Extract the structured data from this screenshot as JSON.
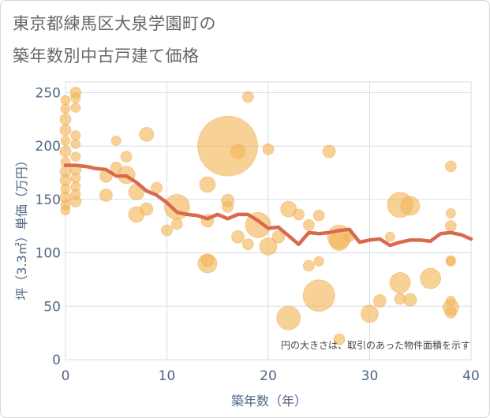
{
  "title_line1": "東京都練馬区大泉学園町の",
  "title_line2": "築年数別中古戸建て価格",
  "chart_data": {
    "type": "scatter",
    "xlabel": "築年数（年）",
    "ylabel": "坪（3.3㎡）単価（万円）",
    "xlim": [
      0,
      40
    ],
    "ylim": [
      0,
      260
    ],
    "xticks": [
      0,
      10,
      20,
      30,
      40
    ],
    "yticks": [
      0,
      50,
      100,
      150,
      200,
      250
    ],
    "note": "円の大きさは、取引のあった物件面積を示す",
    "colors": {
      "bubble": "#f3b557",
      "line": "#d9694f",
      "grid": "#d6dde6",
      "tick_text": "#506784"
    },
    "grid": true,
    "bubbles": [
      {
        "x": 0,
        "y": 243,
        "s": 6
      },
      {
        "x": 0,
        "y": 235,
        "s": 6
      },
      {
        "x": 0,
        "y": 225,
        "s": 7
      },
      {
        "x": 0,
        "y": 215,
        "s": 7
      },
      {
        "x": 0,
        "y": 205,
        "s": 6
      },
      {
        "x": 0,
        "y": 195,
        "s": 7
      },
      {
        "x": 0,
        "y": 185,
        "s": 6
      },
      {
        "x": 0,
        "y": 176,
        "s": 7
      },
      {
        "x": 0,
        "y": 168,
        "s": 7
      },
      {
        "x": 0,
        "y": 160,
        "s": 6
      },
      {
        "x": 0,
        "y": 152,
        "s": 7
      },
      {
        "x": 0,
        "y": 145,
        "s": 6
      },
      {
        "x": 0,
        "y": 140,
        "s": 6
      },
      {
        "x": 1,
        "y": 250,
        "s": 7
      },
      {
        "x": 1,
        "y": 245,
        "s": 6
      },
      {
        "x": 1,
        "y": 236,
        "s": 6
      },
      {
        "x": 1,
        "y": 210,
        "s": 6
      },
      {
        "x": 1,
        "y": 202,
        "s": 6
      },
      {
        "x": 1,
        "y": 190,
        "s": 6
      },
      {
        "x": 1,
        "y": 178,
        "s": 7
      },
      {
        "x": 1,
        "y": 170,
        "s": 6
      },
      {
        "x": 1,
        "y": 162,
        "s": 6
      },
      {
        "x": 1,
        "y": 155,
        "s": 6
      },
      {
        "x": 1,
        "y": 148,
        "s": 7
      },
      {
        "x": 4,
        "y": 172,
        "s": 8
      },
      {
        "x": 4,
        "y": 154,
        "s": 8
      },
      {
        "x": 5,
        "y": 205,
        "s": 6
      },
      {
        "x": 5,
        "y": 180,
        "s": 7
      },
      {
        "x": 6,
        "y": 190,
        "s": 7
      },
      {
        "x": 6,
        "y": 173,
        "s": 11
      },
      {
        "x": 7,
        "y": 157,
        "s": 10
      },
      {
        "x": 7,
        "y": 136,
        "s": 10
      },
      {
        "x": 8,
        "y": 211,
        "s": 9
      },
      {
        "x": 8,
        "y": 141,
        "s": 8
      },
      {
        "x": 9,
        "y": 161,
        "s": 7
      },
      {
        "x": 10,
        "y": 121,
        "s": 7
      },
      {
        "x": 11,
        "y": 143,
        "s": 16
      },
      {
        "x": 11,
        "y": 127,
        "s": 7
      },
      {
        "x": 14,
        "y": 164,
        "s": 10
      },
      {
        "x": 14,
        "y": 130,
        "s": 8
      },
      {
        "x": 14,
        "y": 93,
        "s": 8
      },
      {
        "x": 14,
        "y": 90,
        "s": 12
      },
      {
        "x": 16,
        "y": 200,
        "s": 38
      },
      {
        "x": 16,
        "y": 149,
        "s": 8
      },
      {
        "x": 16,
        "y": 143,
        "s": 7
      },
      {
        "x": 17,
        "y": 195,
        "s": 9
      },
      {
        "x": 17,
        "y": 115,
        "s": 8
      },
      {
        "x": 18,
        "y": 246,
        "s": 7
      },
      {
        "x": 18,
        "y": 108,
        "s": 7
      },
      {
        "x": 19,
        "y": 126,
        "s": 16
      },
      {
        "x": 20,
        "y": 197,
        "s": 7
      },
      {
        "x": 20,
        "y": 106,
        "s": 11
      },
      {
        "x": 21,
        "y": 115,
        "s": 8
      },
      {
        "x": 22,
        "y": 141,
        "s": 10
      },
      {
        "x": 22,
        "y": 39,
        "s": 15
      },
      {
        "x": 23,
        "y": 136,
        "s": 7
      },
      {
        "x": 24,
        "y": 126,
        "s": 7
      },
      {
        "x": 24,
        "y": 88,
        "s": 7
      },
      {
        "x": 25,
        "y": 135,
        "s": 7
      },
      {
        "x": 25,
        "y": 92,
        "s": 6
      },
      {
        "x": 25,
        "y": 60,
        "s": 20
      },
      {
        "x": 26,
        "y": 195,
        "s": 8
      },
      {
        "x": 27,
        "y": 115,
        "s": 15
      },
      {
        "x": 27,
        "y": 111,
        "s": 12
      },
      {
        "x": 27,
        "y": 19,
        "s": 7
      },
      {
        "x": 28,
        "y": 115,
        "s": 6
      },
      {
        "x": 30,
        "y": 43,
        "s": 11
      },
      {
        "x": 31,
        "y": 55,
        "s": 8
      },
      {
        "x": 32,
        "y": 115,
        "s": 6
      },
      {
        "x": 33,
        "y": 145,
        "s": 16
      },
      {
        "x": 33,
        "y": 72,
        "s": 13
      },
      {
        "x": 33,
        "y": 57,
        "s": 7
      },
      {
        "x": 34,
        "y": 144,
        "s": 12
      },
      {
        "x": 34,
        "y": 56,
        "s": 8
      },
      {
        "x": 36,
        "y": 76,
        "s": 13
      },
      {
        "x": 38,
        "y": 181,
        "s": 7
      },
      {
        "x": 38,
        "y": 137,
        "s": 6
      },
      {
        "x": 38,
        "y": 125,
        "s": 7
      },
      {
        "x": 38,
        "y": 93,
        "s": 6
      },
      {
        "x": 38,
        "y": 92,
        "s": 6
      },
      {
        "x": 38,
        "y": 55,
        "s": 6
      },
      {
        "x": 38,
        "y": 49,
        "s": 10
      },
      {
        "x": 38,
        "y": 44,
        "s": 7
      }
    ],
    "trend_line": {
      "x": [
        0,
        1,
        2,
        3,
        4,
        5,
        6,
        7,
        8,
        9,
        10,
        11,
        12,
        13,
        14,
        15,
        16,
        17,
        18,
        19,
        20,
        21,
        22,
        23,
        24,
        25,
        26,
        27,
        28,
        29,
        30,
        31,
        32,
        33,
        34,
        35,
        36,
        37,
        38,
        39,
        40
      ],
      "y": [
        182,
        182,
        181,
        179,
        178,
        172,
        172,
        166,
        158,
        154,
        147,
        138,
        136,
        135,
        132,
        136,
        132,
        136,
        136,
        130,
        123,
        124,
        116,
        108,
        119,
        118,
        119,
        121,
        122,
        110,
        112,
        113,
        107,
        110,
        112,
        112,
        111,
        118,
        119,
        117,
        113
      ]
    }
  }
}
